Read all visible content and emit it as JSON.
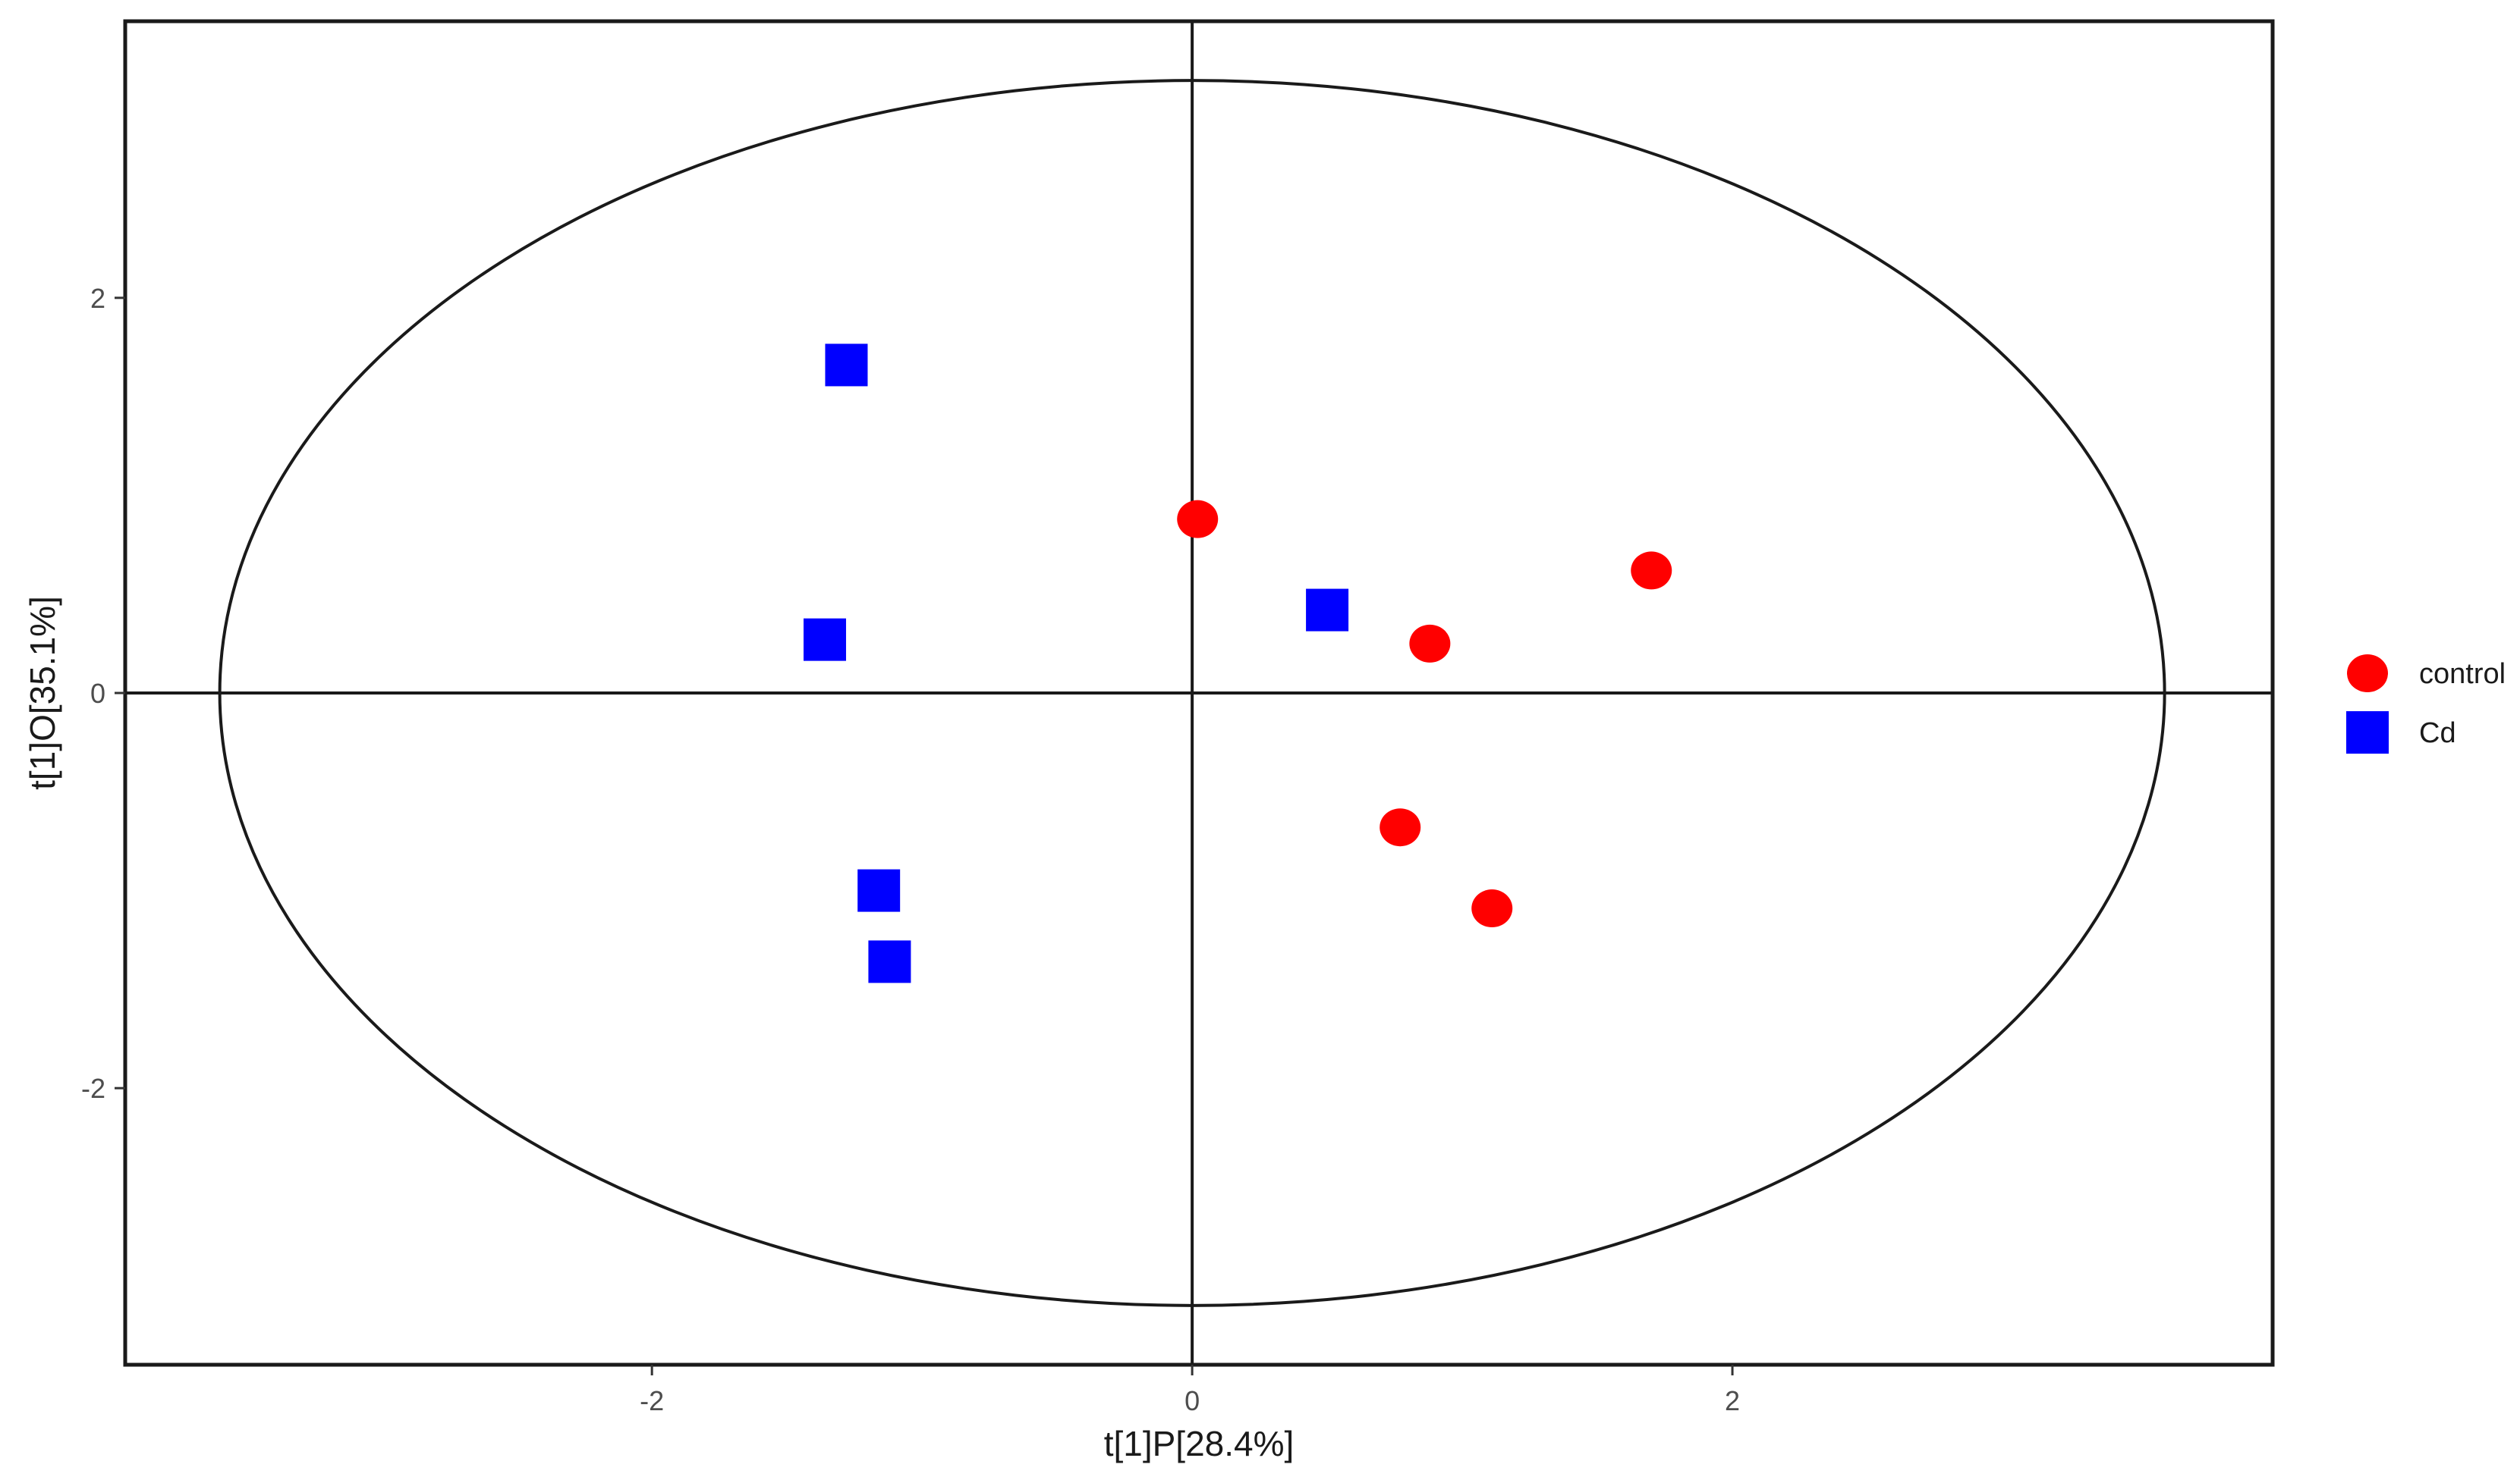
{
  "chart_data": {
    "type": "scatter",
    "title": "",
    "xlabel": "t[1]P[28.4%]",
    "ylabel": "t[1]O[35.1%]",
    "xlim": [
      -3.95,
      4.0
    ],
    "ylim": [
      -3.4,
      3.4
    ],
    "xticks": [
      -2,
      0,
      2
    ],
    "yticks": [
      -2,
      0,
      2
    ],
    "grid": false,
    "reference_lines": {
      "x": 0,
      "y": 0
    },
    "ellipse": {
      "center": [
        0,
        0
      ],
      "rx": 3.6,
      "ry": 3.1
    },
    "legend_position": "right",
    "series": [
      {
        "name": "control",
        "marker": "circle",
        "color": "#ff0000",
        "points": [
          {
            "x": 0.02,
            "y": 0.88
          },
          {
            "x": 1.7,
            "y": 0.62
          },
          {
            "x": 0.88,
            "y": 0.25
          },
          {
            "x": 0.77,
            "y": -0.68
          },
          {
            "x": 1.11,
            "y": -1.09
          }
        ]
      },
      {
        "name": "Cd",
        "marker": "square",
        "color": "#0000ff",
        "points": [
          {
            "x": -1.28,
            "y": 1.66
          },
          {
            "x": 0.5,
            "y": 0.42
          },
          {
            "x": -1.36,
            "y": 0.27
          },
          {
            "x": -1.16,
            "y": -1.0
          },
          {
            "x": -1.12,
            "y": -1.36
          }
        ]
      }
    ]
  }
}
